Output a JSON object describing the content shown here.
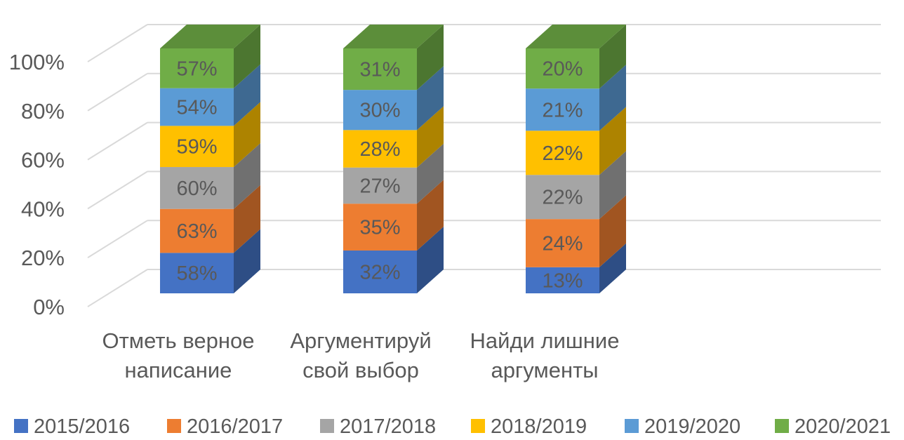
{
  "chart_data": {
    "type": "bar",
    "subtype": "3d-100%-stacked-column",
    "categories": [
      "Отметь верное написание",
      "Аргументируй свой выбор",
      "Найди лишние аргументы"
    ],
    "category_lines": [
      [
        "Отметь верное",
        "написание"
      ],
      [
        "Аргументируй",
        "свой выбор"
      ],
      [
        "Найди лишние",
        "аргументы"
      ]
    ],
    "series": [
      {
        "name": "2015/2016",
        "color": "#4472C4",
        "values": [
          58,
          32,
          13
        ]
      },
      {
        "name": "2016/2017",
        "color": "#ED7D31",
        "values": [
          63,
          35,
          24
        ]
      },
      {
        "name": "2017/2018",
        "color": "#A5A5A5",
        "values": [
          60,
          27,
          22
        ]
      },
      {
        "name": "2018/2019",
        "color": "#FFC000",
        "values": [
          59,
          28,
          22
        ]
      },
      {
        "name": "2019/2020",
        "color": "#5B9BD5",
        "values": [
          54,
          30,
          21
        ]
      },
      {
        "name": "2020/2021",
        "color": "#70AD47",
        "values": [
          57,
          31,
          20
        ]
      }
    ],
    "y_ticks": [
      "0%",
      "20%",
      "40%",
      "60%",
      "80%",
      "100%"
    ],
    "ylim": [
      0,
      100
    ],
    "grid": true,
    "legend": "bottom",
    "title": "",
    "xlabel": "",
    "ylabel": ""
  }
}
